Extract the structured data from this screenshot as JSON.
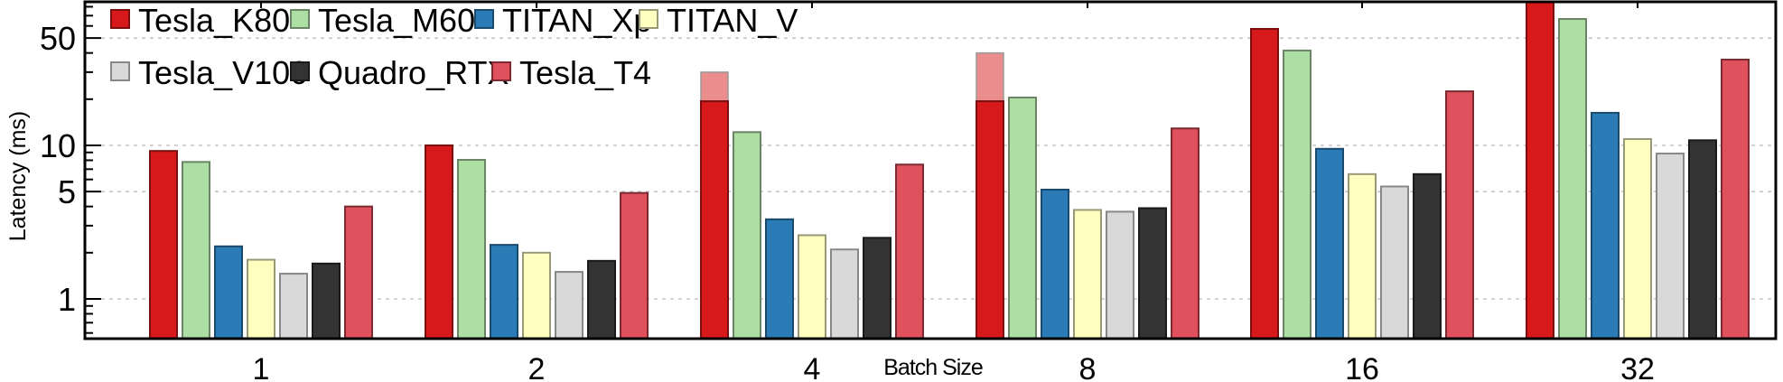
{
  "chart_data": {
    "type": "bar",
    "title": "",
    "xlabel": "Batch Size",
    "ylabel": "Latency (ms)",
    "yscale": "log",
    "ylim": [
      0.55,
      86
    ],
    "grid": "y-dotted",
    "legend_placement": "top-left",
    "yticks": [
      {
        "value": 1,
        "label": "1"
      },
      {
        "value": 5,
        "label": "5"
      },
      {
        "value": 10,
        "label": "10"
      },
      {
        "value": 50,
        "label": "50"
      }
    ],
    "categories": [
      "1",
      "2",
      "4",
      "8",
      "16",
      "32"
    ],
    "series": [
      {
        "name": "Tesla_K80",
        "color": "#d7191c",
        "edge": "#7a0f10",
        "values": [
          9.2,
          10.0,
          19.4,
          19.4,
          57.4,
          90
        ],
        "extended": [
          null,
          null,
          30,
          40,
          null,
          null
        ],
        "extended_color": "#ec8d8d"
      },
      {
        "name": "Tesla_M60",
        "color": "#addfa5",
        "edge": "#6a8466",
        "values": [
          7.8,
          8.05,
          12.2,
          20.5,
          41.5,
          66.6
        ]
      },
      {
        "name": "TITAN_Xp",
        "color": "#2b7bb6",
        "edge": "#1a4a6e",
        "values": [
          2.2,
          2.25,
          3.3,
          5.15,
          9.5,
          16.3
        ]
      },
      {
        "name": "TITAN_V",
        "color": "#ffffc0",
        "edge": "#999977",
        "values": [
          1.8,
          2.0,
          2.6,
          3.8,
          6.5,
          11.0
        ]
      },
      {
        "name": "Tesla_V100",
        "color": "#d9d9d9",
        "edge": "#888888",
        "values": [
          1.46,
          1.5,
          2.1,
          3.7,
          5.4,
          8.85
        ]
      },
      {
        "name": "Quadro_RTX",
        "color": "#333333",
        "edge": "#1a1a1a",
        "values": [
          1.7,
          1.77,
          2.5,
          3.9,
          6.5,
          10.8
        ]
      },
      {
        "name": "Tesla_T4",
        "color": "#df525d",
        "edge": "#7a2a30",
        "values": [
          4.0,
          4.9,
          7.5,
          12.9,
          22.5,
          36.2
        ]
      }
    ]
  }
}
